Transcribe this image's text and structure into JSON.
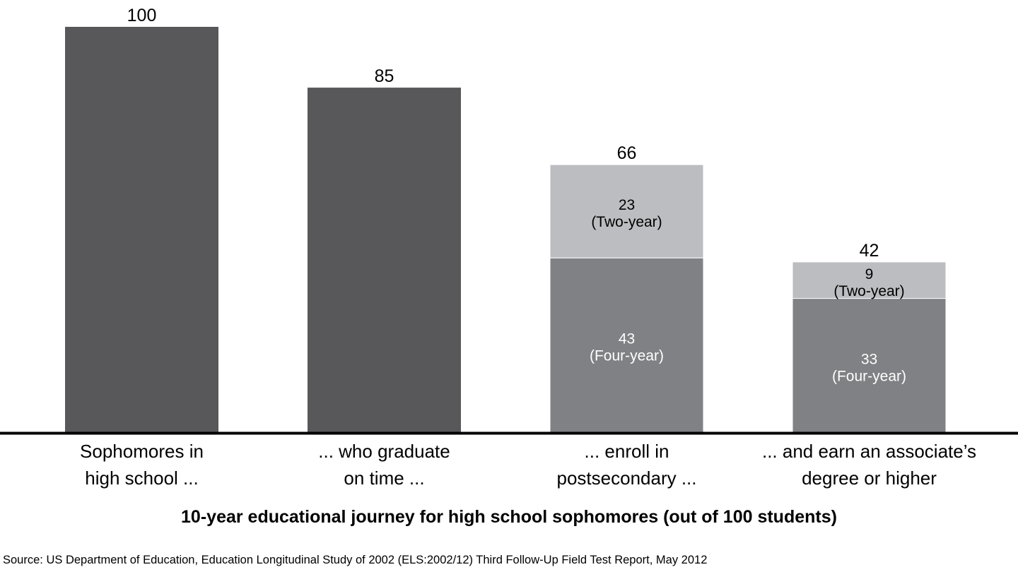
{
  "chart_data": {
    "type": "bar",
    "stacked": true,
    "title": "10-year educational journey for high school sophomores (out of 100 students)",
    "source": "Source: US Department of Education, Education Longitudinal Study of 2002 (ELS:2002/12) Third Follow-Up Field Test Report, May 2012",
    "ylim": [
      0,
      100
    ],
    "grid": false,
    "colors": {
      "total": "#58585a",
      "four_year": "#808184",
      "two_year": "#bcbdc0",
      "axis": "#000000"
    },
    "bars": [
      {
        "category": [
          "Sophomores in",
          "high school ..."
        ],
        "total": 100,
        "segments": []
      },
      {
        "category": [
          "... who graduate",
          "on time ..."
        ],
        "total": 85,
        "segments": []
      },
      {
        "category": [
          "... enroll in",
          "postsecondary ..."
        ],
        "total": 66,
        "segments": [
          {
            "value": 43,
            "label": "(Four-year)",
            "kind": "four_year"
          },
          {
            "value": 23,
            "label": "(Two-year)",
            "kind": "two_year"
          }
        ]
      },
      {
        "category": [
          "... and earn an associate’s",
          "degree or higher"
        ],
        "total": 42,
        "segments": [
          {
            "value": 33,
            "label": "(Four-year)",
            "kind": "four_year"
          },
          {
            "value": 9,
            "label": "(Two-year)",
            "kind": "two_year"
          }
        ]
      }
    ]
  }
}
